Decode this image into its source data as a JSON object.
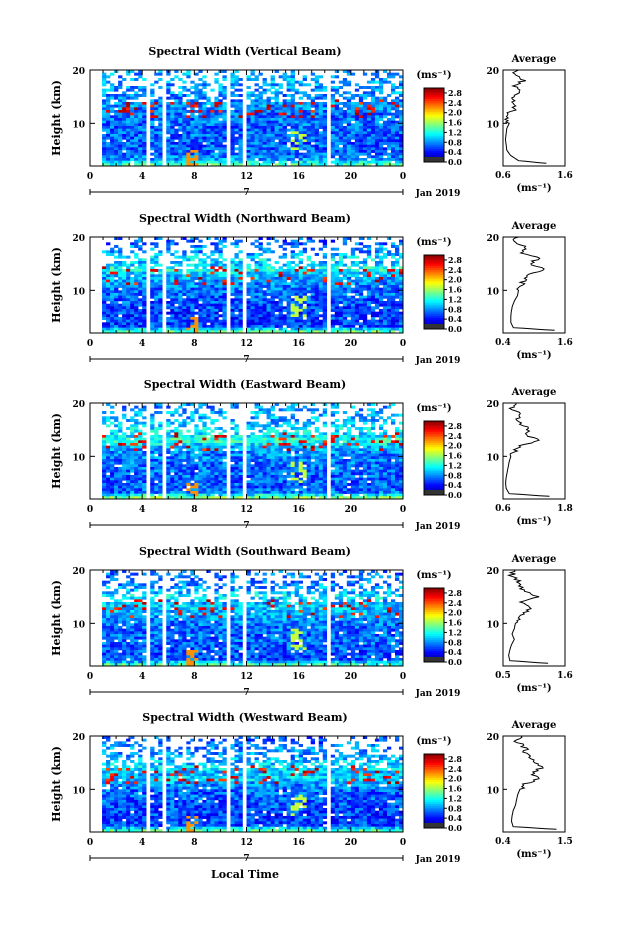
{
  "figure": {
    "xlabel": "Local Time",
    "date_label": "Jan 2019",
    "day_label": "7",
    "colorbar_unit": "(ms⁻¹)",
    "average_title": "Average",
    "average_xlabel": "(ms⁻¹)",
    "colorbar_ticks": [
      "2.8",
      "2.4",
      "2.0",
      "1.6",
      "1.2",
      "0.8",
      "0.4",
      "0.0"
    ]
  },
  "chart_data": [
    {
      "type": "heatmap",
      "title": "Spectral Width (Vertical Beam)",
      "ylabel": "Height (km)",
      "xlim": [
        0,
        24
      ],
      "ylim": [
        2,
        20
      ],
      "xticks": [
        "0",
        "4",
        "8",
        "12",
        "16",
        "20",
        "0"
      ],
      "yticks": [
        "10",
        "20"
      ],
      "colorbar": {
        "range": [
          0.0,
          3.0
        ],
        "ticks": [
          "2.8",
          "2.4",
          "2.0",
          "1.6",
          "1.2",
          "0.8",
          "0.4",
          "0.0"
        ]
      },
      "data_gaps_hours": [
        [
          4.4,
          4.7
        ],
        [
          5.5,
          5.8
        ],
        [
          10.5,
          10.9
        ],
        [
          11.6,
          12.0
        ],
        [
          18.2,
          18.6
        ]
      ],
      "average_profile": {
        "xlim": [
          0.6,
          1.6
        ],
        "xticks": [
          "0.6",
          "1.6"
        ],
        "height_km": [
          2.5,
          3,
          4,
          5,
          6,
          7,
          8,
          9,
          10,
          11,
          12,
          13,
          14,
          15,
          16,
          17,
          18,
          19,
          20
        ],
        "value": [
          1.3,
          0.85,
          0.72,
          0.66,
          0.65,
          0.64,
          0.65,
          0.66,
          0.7,
          0.68,
          0.72,
          0.78,
          0.8,
          0.75,
          0.85,
          0.8,
          0.92,
          0.78,
          0.85
        ]
      }
    },
    {
      "type": "heatmap",
      "title": "Spectral Width (Northward Beam)",
      "ylabel": "Height (km)",
      "xlim": [
        0,
        24
      ],
      "ylim": [
        2,
        20
      ],
      "xticks": [
        "0",
        "4",
        "8",
        "12",
        "16",
        "20",
        "0"
      ],
      "yticks": [
        "10",
        "20"
      ],
      "colorbar": {
        "range": [
          0.0,
          3.0
        ],
        "ticks": [
          "2.8",
          "2.4",
          "2.0",
          "1.6",
          "1.2",
          "0.8",
          "0.4",
          "0.0"
        ]
      },
      "data_gaps_hours": [
        [
          4.4,
          4.7
        ],
        [
          5.5,
          5.8
        ],
        [
          10.5,
          10.9
        ],
        [
          11.6,
          12.0
        ],
        [
          18.2,
          18.6
        ]
      ],
      "average_profile": {
        "xlim": [
          0.4,
          1.6
        ],
        "xticks": [
          "0.4",
          "1.6"
        ],
        "height_km": [
          2.5,
          3,
          4,
          5,
          6,
          7,
          8,
          9,
          10,
          11,
          12,
          13,
          14,
          15,
          16,
          17,
          18,
          19,
          20
        ],
        "value": [
          1.4,
          0.6,
          0.55,
          0.55,
          0.56,
          0.58,
          0.62,
          0.68,
          0.7,
          0.75,
          0.82,
          0.95,
          1.25,
          0.9,
          1.1,
          0.75,
          0.85,
          0.6,
          0.7
        ]
      }
    },
    {
      "type": "heatmap",
      "title": "Spectral Width (Eastward Beam)",
      "ylabel": "Height (km)",
      "xlim": [
        0,
        24
      ],
      "ylim": [
        2,
        20
      ],
      "xticks": [
        "0",
        "4",
        "8",
        "12",
        "16",
        "20",
        "0"
      ],
      "yticks": [
        "10",
        "20"
      ],
      "colorbar": {
        "range": [
          0.0,
          3.0
        ],
        "ticks": [
          "2.8",
          "2.4",
          "2.0",
          "1.6",
          "1.2",
          "0.8",
          "0.4",
          "0.0"
        ]
      },
      "data_gaps_hours": [
        [
          4.4,
          4.7
        ],
        [
          5.5,
          5.8
        ],
        [
          10.5,
          10.9
        ],
        [
          11.6,
          12.0
        ],
        [
          18.2,
          18.6
        ]
      ],
      "average_profile": {
        "xlim": [
          0.6,
          1.8
        ],
        "xticks": [
          "0.6",
          "1.8"
        ],
        "height_km": [
          2.5,
          3,
          4,
          5,
          6,
          7,
          8,
          9,
          10,
          11,
          12,
          13,
          14,
          15,
          16,
          17,
          18,
          19,
          20
        ],
        "value": [
          1.5,
          0.72,
          0.66,
          0.65,
          0.66,
          0.68,
          0.7,
          0.72,
          0.75,
          0.82,
          0.95,
          1.3,
          1.05,
          1.1,
          0.95,
          0.85,
          0.95,
          0.78,
          0.85
        ]
      }
    },
    {
      "type": "heatmap",
      "title": "Spectral Width (Southward Beam)",
      "ylabel": "Height (km)",
      "xlim": [
        0,
        24
      ],
      "ylim": [
        2,
        20
      ],
      "xticks": [
        "0",
        "4",
        "8",
        "12",
        "16",
        "20",
        "0"
      ],
      "yticks": [
        "10",
        "20"
      ],
      "colorbar": {
        "range": [
          0.0,
          3.0
        ],
        "ticks": [
          "2.8",
          "2.4",
          "2.0",
          "1.6",
          "1.2",
          "0.8",
          "0.4",
          "0.0"
        ]
      },
      "data_gaps_hours": [
        [
          4.4,
          4.7
        ],
        [
          5.5,
          5.8
        ],
        [
          10.5,
          10.9
        ],
        [
          11.6,
          12.0
        ],
        [
          18.2,
          18.6
        ]
      ],
      "average_profile": {
        "xlim": [
          0.5,
          1.6
        ],
        "xticks": [
          "0.5",
          "1.6"
        ],
        "height_km": [
          2.5,
          3,
          4,
          5,
          6,
          7,
          8,
          9,
          10,
          11,
          12,
          13,
          14,
          15,
          16,
          17,
          18,
          19,
          20
        ],
        "value": [
          1.3,
          0.62,
          0.6,
          0.62,
          0.65,
          0.7,
          0.66,
          0.7,
          0.72,
          0.8,
          0.9,
          1.0,
          0.85,
          1.1,
          0.9,
          0.8,
          0.75,
          0.65,
          0.7
        ]
      }
    },
    {
      "type": "heatmap",
      "title": "Spectral Width (Westward Beam)",
      "ylabel": "Height (km)",
      "xlim": [
        0,
        24
      ],
      "ylim": [
        2,
        20
      ],
      "xticks": [
        "0",
        "4",
        "8",
        "12",
        "16",
        "20",
        "0"
      ],
      "yticks": [
        "10",
        "20"
      ],
      "colorbar": {
        "range": [
          0.0,
          3.0
        ],
        "ticks": [
          "2.8",
          "2.4",
          "2.0",
          "1.6",
          "1.2",
          "0.8",
          "0.4",
          "0.0"
        ]
      },
      "data_gaps_hours": [
        [
          4.4,
          4.7
        ],
        [
          5.5,
          5.8
        ],
        [
          10.5,
          10.9
        ],
        [
          11.6,
          12.0
        ],
        [
          18.2,
          18.6
        ]
      ],
      "average_profile": {
        "xlim": [
          0.4,
          1.5
        ],
        "xticks": [
          "0.4",
          "1.5"
        ],
        "height_km": [
          2.5,
          3,
          4,
          5,
          6,
          7,
          8,
          9,
          10,
          11,
          12,
          13,
          14,
          15,
          16,
          17,
          18,
          19,
          20
        ],
        "value": [
          1.35,
          0.58,
          0.55,
          0.56,
          0.58,
          0.62,
          0.64,
          0.66,
          0.7,
          0.8,
          1.05,
          0.9,
          1.1,
          0.95,
          0.85,
          0.8,
          0.78,
          0.65,
          0.72
        ]
      }
    }
  ]
}
